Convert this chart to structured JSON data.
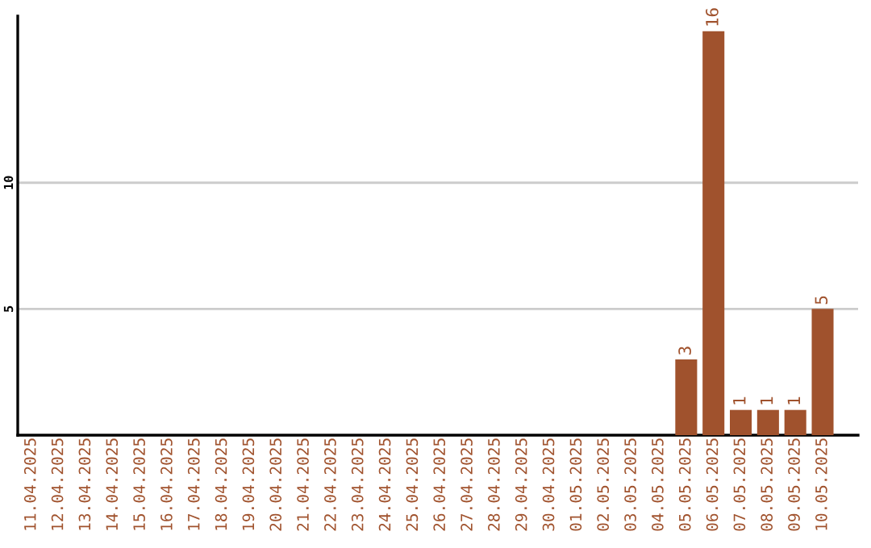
{
  "chart_data": {
    "type": "bar",
    "categories": [
      "11.04.2025",
      "12.04.2025",
      "13.04.2025",
      "14.04.2025",
      "15.04.2025",
      "16.04.2025",
      "17.04.2025",
      "18.04.2025",
      "19.04.2025",
      "20.04.2025",
      "21.04.2025",
      "22.04.2025",
      "23.04.2025",
      "24.04.2025",
      "25.04.2025",
      "26.04.2025",
      "27.04.2025",
      "28.04.2025",
      "29.04.2025",
      "30.04.2025",
      "01.05.2025",
      "02.05.2025",
      "03.05.2025",
      "04.05.2025",
      "05.05.2025",
      "06.05.2025",
      "07.05.2025",
      "08.05.2025",
      "09.05.2025",
      "10.05.2025"
    ],
    "values": [
      0,
      0,
      0,
      0,
      0,
      0,
      0,
      0,
      0,
      0,
      0,
      0,
      0,
      0,
      0,
      0,
      0,
      0,
      0,
      0,
      0,
      0,
      0,
      0,
      3,
      16,
      1,
      1,
      1,
      5
    ],
    "value_labels": [
      null,
      null,
      null,
      null,
      null,
      null,
      null,
      null,
      null,
      null,
      null,
      null,
      null,
      null,
      null,
      null,
      null,
      null,
      null,
      null,
      null,
      null,
      null,
      null,
      "3",
      "16",
      "1",
      "1",
      "1",
      "5"
    ],
    "color": "#a0522d",
    "ylim": [
      0,
      16.6
    ],
    "yticks": [
      5,
      10
    ],
    "grid": "y"
  }
}
